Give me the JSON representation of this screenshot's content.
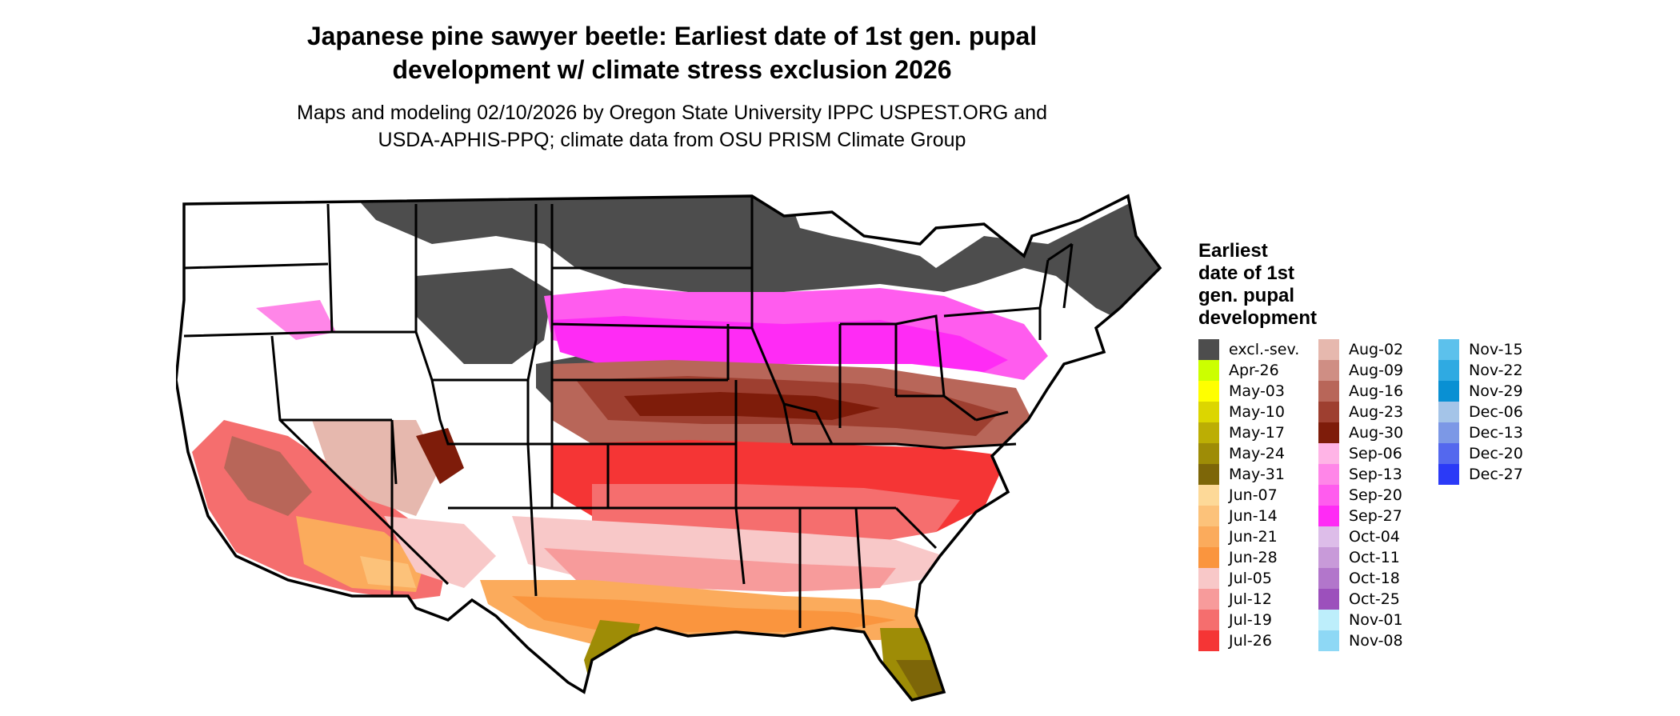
{
  "header": {
    "title_line1": "Japanese pine sawyer beetle: Earliest date of 1st gen. pupal",
    "title_line2": "development w/ climate stress exclusion 2026",
    "subtitle_line1": "Maps and modeling 02/10/2026 by Oregon State University IPPC USPEST.ORG and",
    "subtitle_line2": "USDA-APHIS-PPQ; climate data from OSU PRISM Climate Group"
  },
  "map": {
    "region": "Contiguous United States",
    "colors": {
      "excluded": "#4d4d4d",
      "no_development": "#ffffff",
      "state_borders": "#000000"
    }
  },
  "legend": {
    "title_lines": [
      "Earliest",
      "date of 1st",
      "gen. pupal",
      "development"
    ],
    "columns": [
      [
        {
          "label": "excl.-sev.",
          "color": "#4d4d4d"
        },
        {
          "label": "Apr-26",
          "color": "#ccff00"
        },
        {
          "label": "May-03",
          "color": "#ffff00"
        },
        {
          "label": "May-10",
          "color": "#dcd600"
        },
        {
          "label": "May-17",
          "color": "#bcae04"
        },
        {
          "label": "May-24",
          "color": "#9e8c06"
        },
        {
          "label": "May-31",
          "color": "#7d6608"
        },
        {
          "label": "Jun-07",
          "color": "#fdd998"
        },
        {
          "label": "Jun-14",
          "color": "#fcc27a"
        },
        {
          "label": "Jun-21",
          "color": "#fbab5c"
        },
        {
          "label": "Jun-28",
          "color": "#fa953e"
        },
        {
          "label": "Jul-05",
          "color": "#f8c8c8"
        },
        {
          "label": "Jul-12",
          "color": "#f79b9b"
        },
        {
          "label": "Jul-19",
          "color": "#f56e6e"
        },
        {
          "label": "Jul-26",
          "color": "#f53535"
        }
      ],
      [
        {
          "label": "Aug-02",
          "color": "#e6b8ae"
        },
        {
          "label": "Aug-09",
          "color": "#cf8e84"
        },
        {
          "label": "Aug-16",
          "color": "#b86659"
        },
        {
          "label": "Aug-23",
          "color": "#9e3f30"
        },
        {
          "label": "Aug-30",
          "color": "#7e1c0a"
        },
        {
          "label": "Sep-06",
          "color": "#ffb4e6"
        },
        {
          "label": "Sep-13",
          "color": "#ff86e8"
        },
        {
          "label": "Sep-20",
          "color": "#ff5cee"
        },
        {
          "label": "Sep-27",
          "color": "#ff2bf5"
        },
        {
          "label": "Oct-04",
          "color": "#ddbde9"
        },
        {
          "label": "Oct-11",
          "color": "#c89ad9"
        },
        {
          "label": "Oct-18",
          "color": "#b276cb"
        },
        {
          "label": "Oct-25",
          "color": "#9c50bc"
        },
        {
          "label": "Nov-01",
          "color": "#bdeefb"
        },
        {
          "label": "Nov-08",
          "color": "#8ed8f5"
        }
      ],
      [
        {
          "label": "Nov-15",
          "color": "#5cc1ec"
        },
        {
          "label": "Nov-22",
          "color": "#2faae2"
        },
        {
          "label": "Nov-29",
          "color": "#0990d3"
        },
        {
          "label": "Dec-06",
          "color": "#a4c4e8"
        },
        {
          "label": "Dec-13",
          "color": "#7c98e6"
        },
        {
          "label": "Dec-20",
          "color": "#5468ee"
        },
        {
          "label": "Dec-27",
          "color": "#2b3af7"
        }
      ]
    ]
  }
}
